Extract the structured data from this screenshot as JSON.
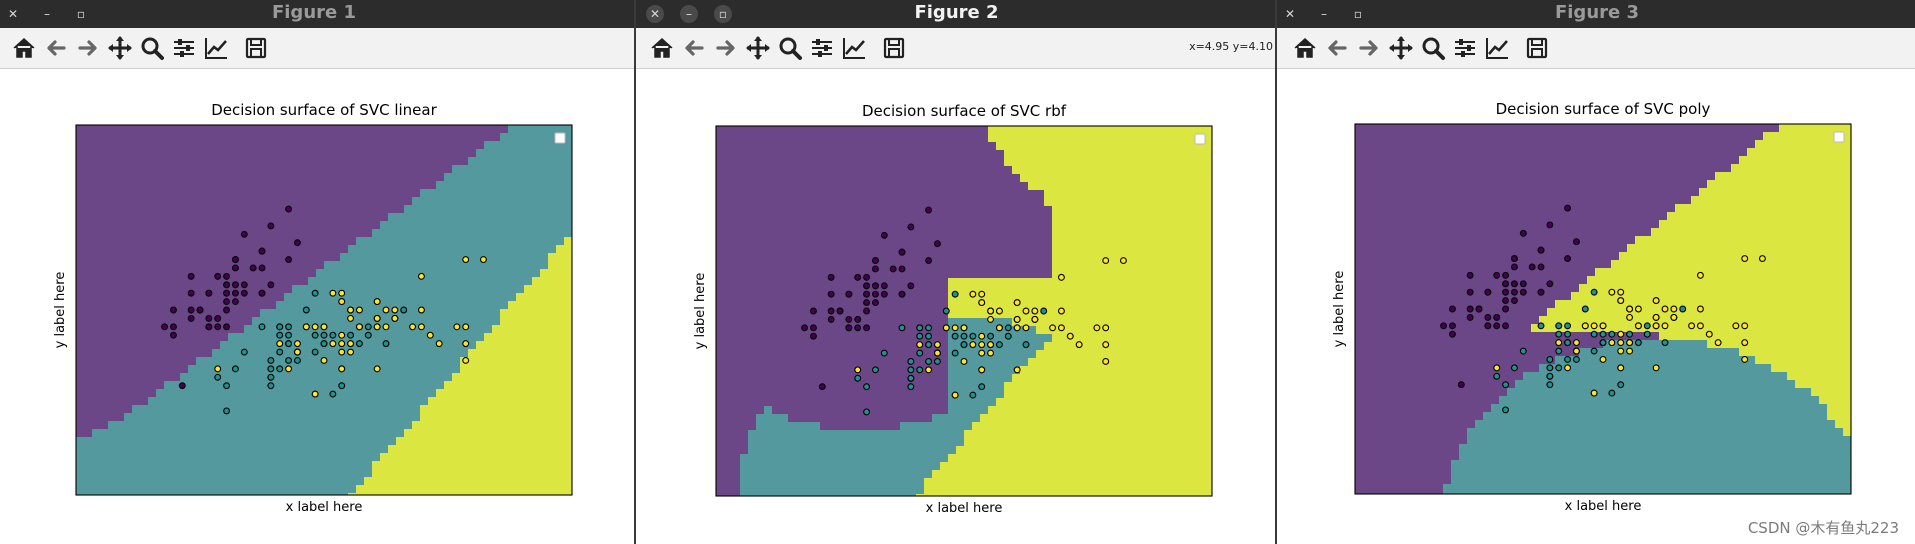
{
  "windows": [
    {
      "id": "fig1",
      "title": "Figure 1",
      "active": false,
      "coords": "",
      "chart_data": {
        "type": "scatter",
        "title": "Decision surface of SVC linear",
        "xlabel": "x label here",
        "ylabel": "y label here",
        "kernel": "linear",
        "xlim": [
          3.3,
          8.9
        ],
        "ylim": [
          1.0,
          5.4
        ],
        "grid": false,
        "legend": "top-right (empty)"
      }
    },
    {
      "id": "fig2",
      "title": "Figure 2",
      "active": true,
      "coords": "x=4.95 y=4.10",
      "chart_data": {
        "type": "scatter",
        "title": "Decision surface of SVC rbf",
        "xlabel": "x label here",
        "ylabel": "y label here",
        "kernel": "rbf",
        "xlim": [
          3.3,
          8.9
        ],
        "ylim": [
          1.0,
          5.4
        ],
        "grid": false,
        "legend": "top-right (empty)"
      }
    },
    {
      "id": "fig3",
      "title": "Figure 3",
      "active": false,
      "coords": "",
      "chart_data": {
        "type": "scatter",
        "title": "Decision surface of SVC poly",
        "xlabel": "x label here",
        "ylabel": "y label here",
        "kernel": "poly",
        "xlim": [
          3.3,
          8.9
        ],
        "ylim": [
          1.0,
          5.4
        ],
        "grid": false,
        "legend": "top-right (empty)"
      }
    }
  ],
  "class_colors": {
    "setosa": "#440154",
    "versicolor": "#21918c",
    "virginica": "#fde725"
  },
  "region_colors": {
    "class0": "#6b4787",
    "class1": "#54999e",
    "class2": "#dce640"
  },
  "points": {
    "class0": [
      [
        5.1,
        3.5
      ],
      [
        4.9,
        3.0
      ],
      [
        4.7,
        3.2
      ],
      [
        4.6,
        3.1
      ],
      [
        5.0,
        3.6
      ],
      [
        5.4,
        3.9
      ],
      [
        4.6,
        3.4
      ],
      [
        5.0,
        3.4
      ],
      [
        4.4,
        2.9
      ],
      [
        4.9,
        3.1
      ],
      [
        5.4,
        3.7
      ],
      [
        4.8,
        3.4
      ],
      [
        4.8,
        3.0
      ],
      [
        4.3,
        3.0
      ],
      [
        5.8,
        4.0
      ],
      [
        5.7,
        4.4
      ],
      [
        5.4,
        3.9
      ],
      [
        5.1,
        3.5
      ],
      [
        5.7,
        3.8
      ],
      [
        5.1,
        3.8
      ],
      [
        5.4,
        3.4
      ],
      [
        5.1,
        3.7
      ],
      [
        4.6,
        3.6
      ],
      [
        5.1,
        3.3
      ],
      [
        4.8,
        3.4
      ],
      [
        5.0,
        3.0
      ],
      [
        5.0,
        3.4
      ],
      [
        5.2,
        3.5
      ],
      [
        5.2,
        3.4
      ],
      [
        4.7,
        3.2
      ],
      [
        4.8,
        3.1
      ],
      [
        5.4,
        3.4
      ],
      [
        5.2,
        4.1
      ],
      [
        5.5,
        4.2
      ],
      [
        4.9,
        3.1
      ],
      [
        5.0,
        3.2
      ],
      [
        5.5,
        3.5
      ],
      [
        4.9,
        3.6
      ],
      [
        4.4,
        3.0
      ],
      [
        5.1,
        3.4
      ],
      [
        5.0,
        3.5
      ],
      [
        4.5,
        2.3
      ],
      [
        4.4,
        3.2
      ],
      [
        5.0,
        3.5
      ],
      [
        5.1,
        3.8
      ],
      [
        4.8,
        3.0
      ],
      [
        5.1,
        3.8
      ],
      [
        4.6,
        3.2
      ],
      [
        5.3,
        3.7
      ],
      [
        5.0,
        3.3
      ]
    ],
    "class1": [
      [
        7.0,
        3.2
      ],
      [
        6.4,
        3.2
      ],
      [
        6.9,
        3.1
      ],
      [
        5.5,
        2.3
      ],
      [
        6.5,
        2.8
      ],
      [
        5.7,
        2.8
      ],
      [
        6.3,
        3.3
      ],
      [
        4.9,
        2.4
      ],
      [
        6.6,
        2.9
      ],
      [
        5.2,
        2.7
      ],
      [
        5.0,
        2.0
      ],
      [
        5.9,
        3.0
      ],
      [
        6.0,
        2.2
      ],
      [
        6.1,
        2.9
      ],
      [
        5.6,
        2.9
      ],
      [
        6.7,
        3.1
      ],
      [
        5.6,
        3.0
      ],
      [
        5.8,
        2.7
      ],
      [
        6.2,
        2.2
      ],
      [
        5.6,
        2.5
      ],
      [
        5.9,
        3.2
      ],
      [
        6.1,
        2.8
      ],
      [
        6.3,
        2.5
      ],
      [
        6.1,
        2.8
      ],
      [
        6.4,
        2.9
      ],
      [
        6.6,
        3.0
      ],
      [
        6.8,
        2.8
      ],
      [
        6.7,
        3.0
      ],
      [
        6.0,
        2.9
      ],
      [
        5.7,
        2.6
      ],
      [
        5.5,
        2.4
      ],
      [
        5.5,
        2.4
      ],
      [
        5.8,
        2.7
      ],
      [
        6.0,
        2.7
      ],
      [
        5.4,
        3.0
      ],
      [
        6.0,
        3.4
      ],
      [
        6.7,
        3.1
      ],
      [
        6.3,
        2.3
      ],
      [
        5.6,
        3.0
      ],
      [
        5.5,
        2.5
      ],
      [
        5.5,
        2.6
      ],
      [
        6.1,
        3.0
      ],
      [
        5.8,
        2.6
      ],
      [
        5.0,
        2.3
      ],
      [
        5.6,
        2.7
      ],
      [
        5.7,
        3.0
      ],
      [
        5.7,
        2.9
      ],
      [
        6.2,
        2.9
      ],
      [
        5.1,
        2.5
      ],
      [
        5.7,
        2.8
      ]
    ],
    "class2": [
      [
        6.3,
        3.3
      ],
      [
        5.8,
        2.7
      ],
      [
        7.1,
        3.0
      ],
      [
        6.3,
        2.9
      ],
      [
        6.5,
        3.0
      ],
      [
        7.6,
        3.0
      ],
      [
        4.9,
        2.5
      ],
      [
        7.3,
        2.9
      ],
      [
        6.7,
        2.5
      ],
      [
        7.2,
        3.6
      ],
      [
        6.5,
        3.2
      ],
      [
        6.4,
        2.7
      ],
      [
        6.8,
        3.0
      ],
      [
        5.7,
        2.5
      ],
      [
        5.8,
        2.8
      ],
      [
        6.4,
        3.2
      ],
      [
        6.5,
        3.0
      ],
      [
        7.7,
        3.8
      ],
      [
        7.7,
        2.6
      ],
      [
        6.0,
        2.2
      ],
      [
        6.9,
        3.2
      ],
      [
        5.6,
        2.8
      ],
      [
        7.7,
        2.8
      ],
      [
        6.3,
        2.7
      ],
      [
        6.7,
        3.3
      ],
      [
        7.2,
        3.2
      ],
      [
        6.2,
        2.8
      ],
      [
        6.1,
        3.0
      ],
      [
        6.4,
        2.8
      ],
      [
        7.2,
        3.0
      ],
      [
        7.4,
        2.8
      ],
      [
        7.9,
        3.8
      ],
      [
        6.4,
        2.8
      ],
      [
        6.3,
        2.8
      ],
      [
        6.1,
        2.6
      ],
      [
        7.7,
        3.0
      ],
      [
        6.3,
        3.4
      ],
      [
        6.4,
        3.1
      ],
      [
        6.0,
        3.0
      ],
      [
        6.9,
        3.1
      ],
      [
        6.7,
        3.1
      ],
      [
        6.9,
        3.1
      ],
      [
        5.8,
        2.7
      ],
      [
        6.8,
        3.2
      ],
      [
        6.7,
        3.3
      ],
      [
        6.7,
        3.0
      ],
      [
        6.3,
        2.5
      ],
      [
        6.5,
        3.0
      ],
      [
        6.2,
        3.4
      ],
      [
        5.9,
        3.0
      ]
    ]
  },
  "toolbar_icons": [
    "home-icon",
    "back-icon",
    "forward-icon",
    "pan-icon",
    "zoom-icon",
    "configure-subplots-icon",
    "edit-axis-icon",
    "save-icon"
  ],
  "watermark": "CSDN @木有鱼丸223"
}
